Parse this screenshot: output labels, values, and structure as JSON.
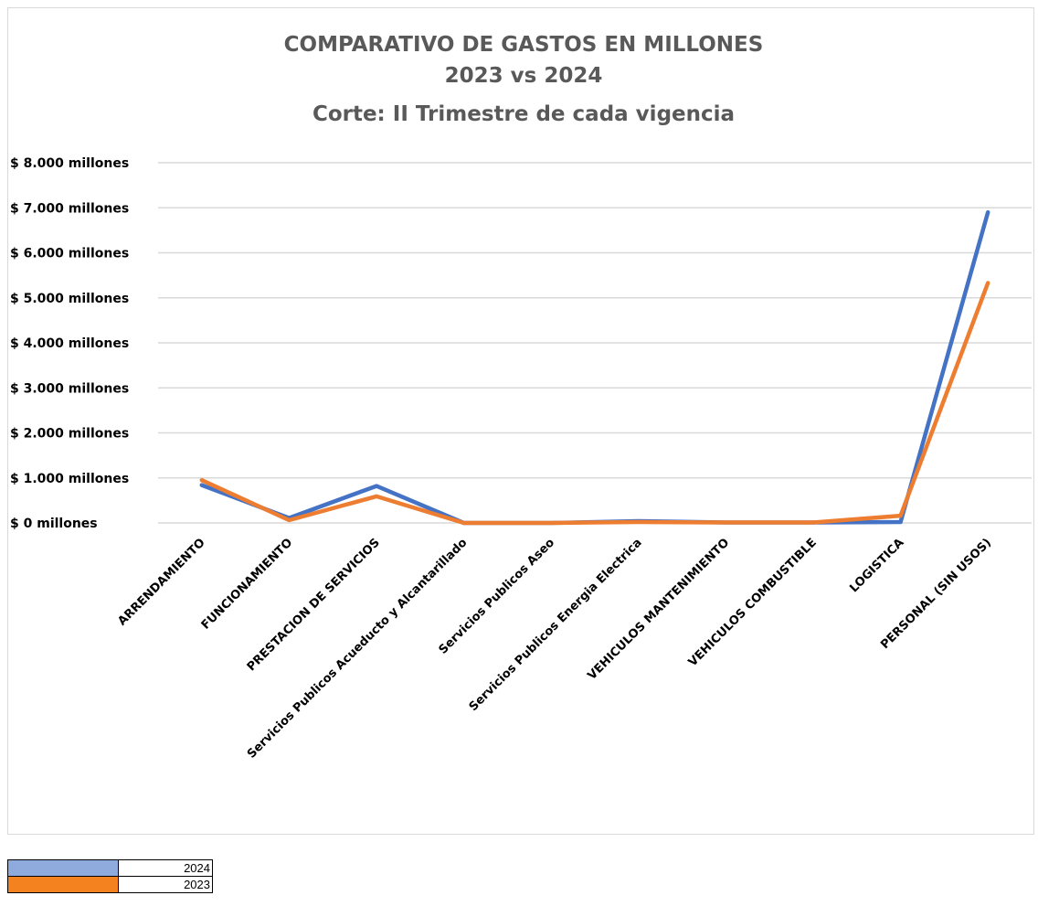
{
  "chart_data": {
    "type": "line",
    "title": [
      "COMPARATIVO DE GASTOS EN MILLONES",
      "2023 vs 2024",
      "Corte: II Trimestre de cada vigencia"
    ],
    "categories": [
      "ARRENDAMIENTO",
      "FUNCIONAMIENTO",
      "PRESTACION DE SERVICIOS",
      "Servicios Publicos Acueducto y Alcantarillado",
      "Servicios Publicos Aseo",
      "Servicios Publicos Energia Electrica",
      "VEHICULOS MANTENIMIENTO",
      "VEHICULOS COMBUSTIBLE",
      "LOGISTICA",
      "PERSONAL (SIN USOS)"
    ],
    "y_ticks": [
      {
        "value": 0,
        "label": "$ 0 millones"
      },
      {
        "value": 1000,
        "label": "$ 1.000 millones"
      },
      {
        "value": 2000,
        "label": "$ 2.000 millones"
      },
      {
        "value": 3000,
        "label": "$ 3.000 millones"
      },
      {
        "value": 4000,
        "label": "$ 4.000 millones"
      },
      {
        "value": 5000,
        "label": "$ 5.000 millones"
      },
      {
        "value": 6000,
        "label": "$ 6.000 millones"
      },
      {
        "value": 7000,
        "label": "$ 7.000 millones"
      },
      {
        "value": 8000,
        "label": "$ 8.000 millones"
      }
    ],
    "ylim": [
      0,
      8000
    ],
    "grid": true,
    "series": [
      {
        "name": "2024",
        "color": "#4472c4",
        "values": [
          840,
          110,
          820,
          0,
          0,
          40,
          10,
          10,
          20,
          6900
        ]
      },
      {
        "name": "2023",
        "color": "#ed7d31",
        "values": [
          950,
          60,
          590,
          0,
          0,
          20,
          10,
          10,
          160,
          5330
        ]
      }
    ]
  },
  "legend": [
    {
      "label": "2024",
      "swatch_color": "#8faadc"
    },
    {
      "label": "2023",
      "swatch_color": "#f4821f"
    }
  ]
}
